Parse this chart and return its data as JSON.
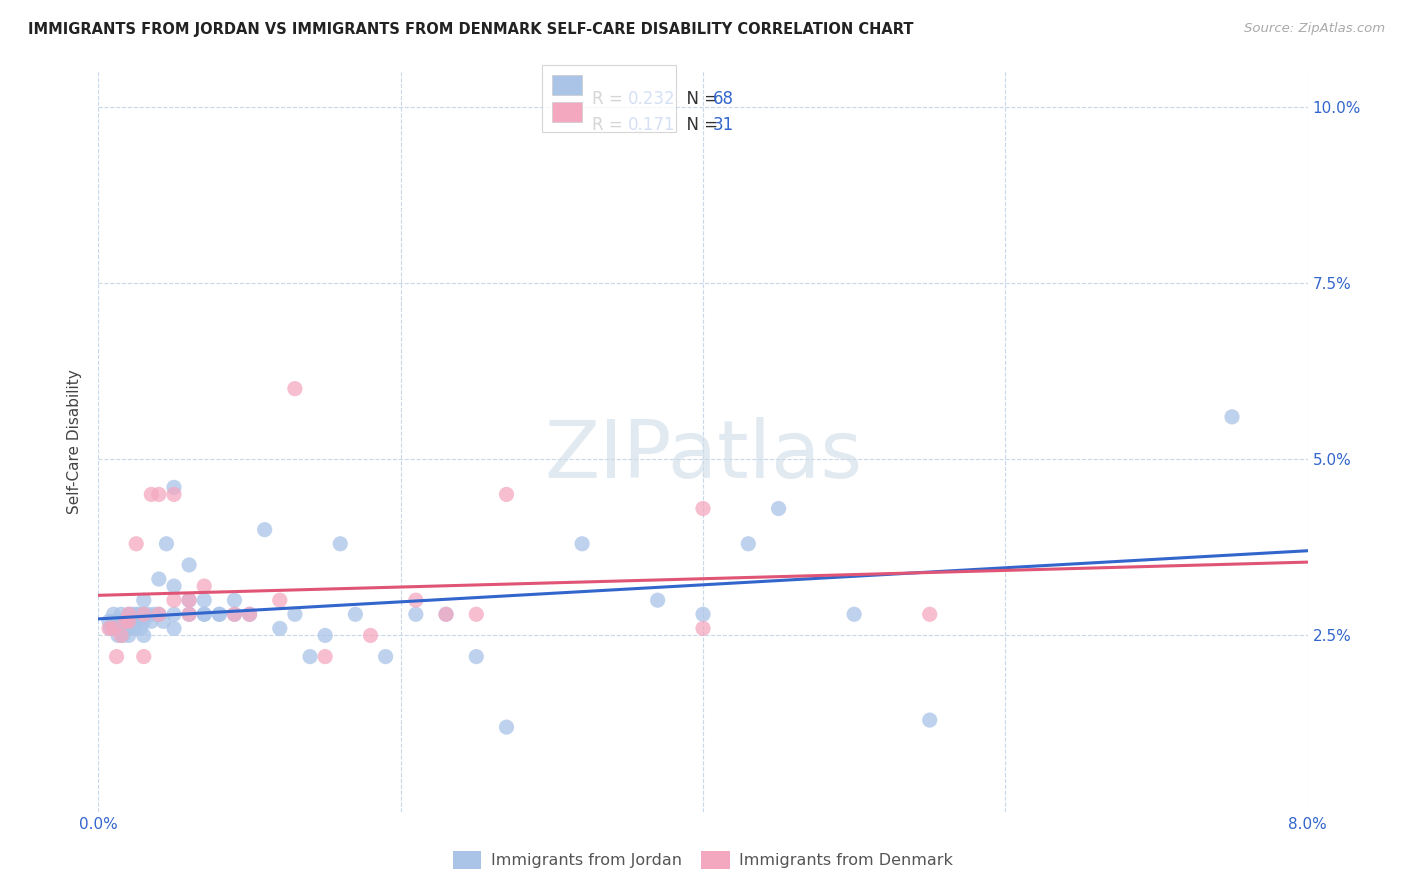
{
  "title": "IMMIGRANTS FROM JORDAN VS IMMIGRANTS FROM DENMARK SELF-CARE DISABILITY CORRELATION CHART",
  "source": "Source: ZipAtlas.com",
  "ylabel": "Self-Care Disability",
  "xlim": [
    0.0,
    0.08
  ],
  "ylim": [
    0.0,
    0.105
  ],
  "jordan_color": "#aac4e8",
  "denmark_color": "#f4a8c0",
  "jordan_line_color": "#3366cc",
  "denmark_line_color": "#e05575",
  "jordan_R": 0.232,
  "jordan_N": 68,
  "denmark_R": 0.171,
  "denmark_N": 31,
  "background_color": "#ffffff",
  "grid_color": "#c8d8e8",
  "legend_text_color": "#3366cc",
  "legend_label_color": "#333333",
  "tick_color": "#3366cc",
  "jordan_x": [
    0.0007,
    0.0008,
    0.001,
    0.001,
    0.0012,
    0.0013,
    0.0015,
    0.0015,
    0.0016,
    0.0017,
    0.0018,
    0.002,
    0.002,
    0.002,
    0.002,
    0.0022,
    0.0023,
    0.0024,
    0.0025,
    0.0026,
    0.0027,
    0.0028,
    0.003,
    0.003,
    0.003,
    0.003,
    0.0033,
    0.0035,
    0.0037,
    0.004,
    0.004,
    0.0043,
    0.0045,
    0.005,
    0.005,
    0.005,
    0.005,
    0.006,
    0.006,
    0.006,
    0.007,
    0.007,
    0.007,
    0.008,
    0.008,
    0.009,
    0.009,
    0.01,
    0.011,
    0.012,
    0.013,
    0.014,
    0.015,
    0.016,
    0.017,
    0.019,
    0.021,
    0.023,
    0.025,
    0.027,
    0.032,
    0.037,
    0.04,
    0.043,
    0.045,
    0.05,
    0.055,
    0.075
  ],
  "jordan_y": [
    0.027,
    0.026,
    0.028,
    0.027,
    0.027,
    0.025,
    0.028,
    0.026,
    0.025,
    0.027,
    0.026,
    0.028,
    0.027,
    0.026,
    0.025,
    0.028,
    0.027,
    0.026,
    0.028,
    0.027,
    0.028,
    0.026,
    0.028,
    0.027,
    0.03,
    0.025,
    0.028,
    0.027,
    0.028,
    0.028,
    0.033,
    0.027,
    0.038,
    0.032,
    0.028,
    0.046,
    0.026,
    0.03,
    0.028,
    0.035,
    0.028,
    0.03,
    0.028,
    0.028,
    0.028,
    0.03,
    0.028,
    0.028,
    0.04,
    0.026,
    0.028,
    0.022,
    0.025,
    0.038,
    0.028,
    0.022,
    0.028,
    0.028,
    0.022,
    0.012,
    0.038,
    0.03,
    0.028,
    0.038,
    0.043,
    0.028,
    0.013,
    0.056
  ],
  "denmark_x": [
    0.0007,
    0.001,
    0.0012,
    0.0015,
    0.0018,
    0.002,
    0.002,
    0.0025,
    0.003,
    0.003,
    0.0035,
    0.004,
    0.004,
    0.005,
    0.005,
    0.006,
    0.006,
    0.007,
    0.009,
    0.01,
    0.012,
    0.013,
    0.015,
    0.018,
    0.021,
    0.023,
    0.025,
    0.027,
    0.04,
    0.04,
    0.055
  ],
  "denmark_y": [
    0.026,
    0.026,
    0.022,
    0.025,
    0.027,
    0.027,
    0.028,
    0.038,
    0.028,
    0.022,
    0.045,
    0.045,
    0.028,
    0.03,
    0.045,
    0.03,
    0.028,
    0.032,
    0.028,
    0.028,
    0.03,
    0.06,
    0.022,
    0.025,
    0.03,
    0.028,
    0.028,
    0.045,
    0.043,
    0.026,
    0.028
  ]
}
